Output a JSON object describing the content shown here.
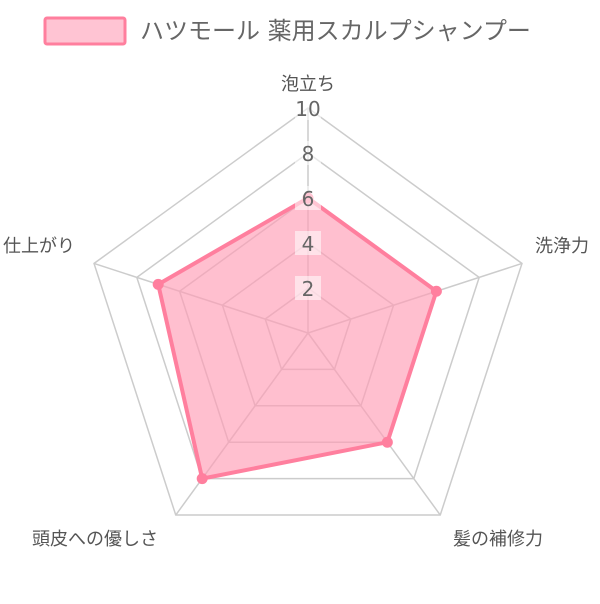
{
  "chart_data": {
    "type": "radar",
    "axes": [
      "泡立ち",
      "洗浄力",
      "髪の補修力",
      "頭皮への優しさ",
      "仕上がり"
    ],
    "rlim": [
      0,
      10
    ],
    "ticks": [
      "2",
      "4",
      "6",
      "8",
      "10"
    ],
    "grid": true,
    "legend_position": "top",
    "series": [
      {
        "name": "ハツモール 薬用スカルプシャンプー",
        "values": [
          6,
          6,
          6,
          8,
          7
        ],
        "color": "#ff7f9e",
        "fill": "#ff9db5"
      }
    ]
  }
}
